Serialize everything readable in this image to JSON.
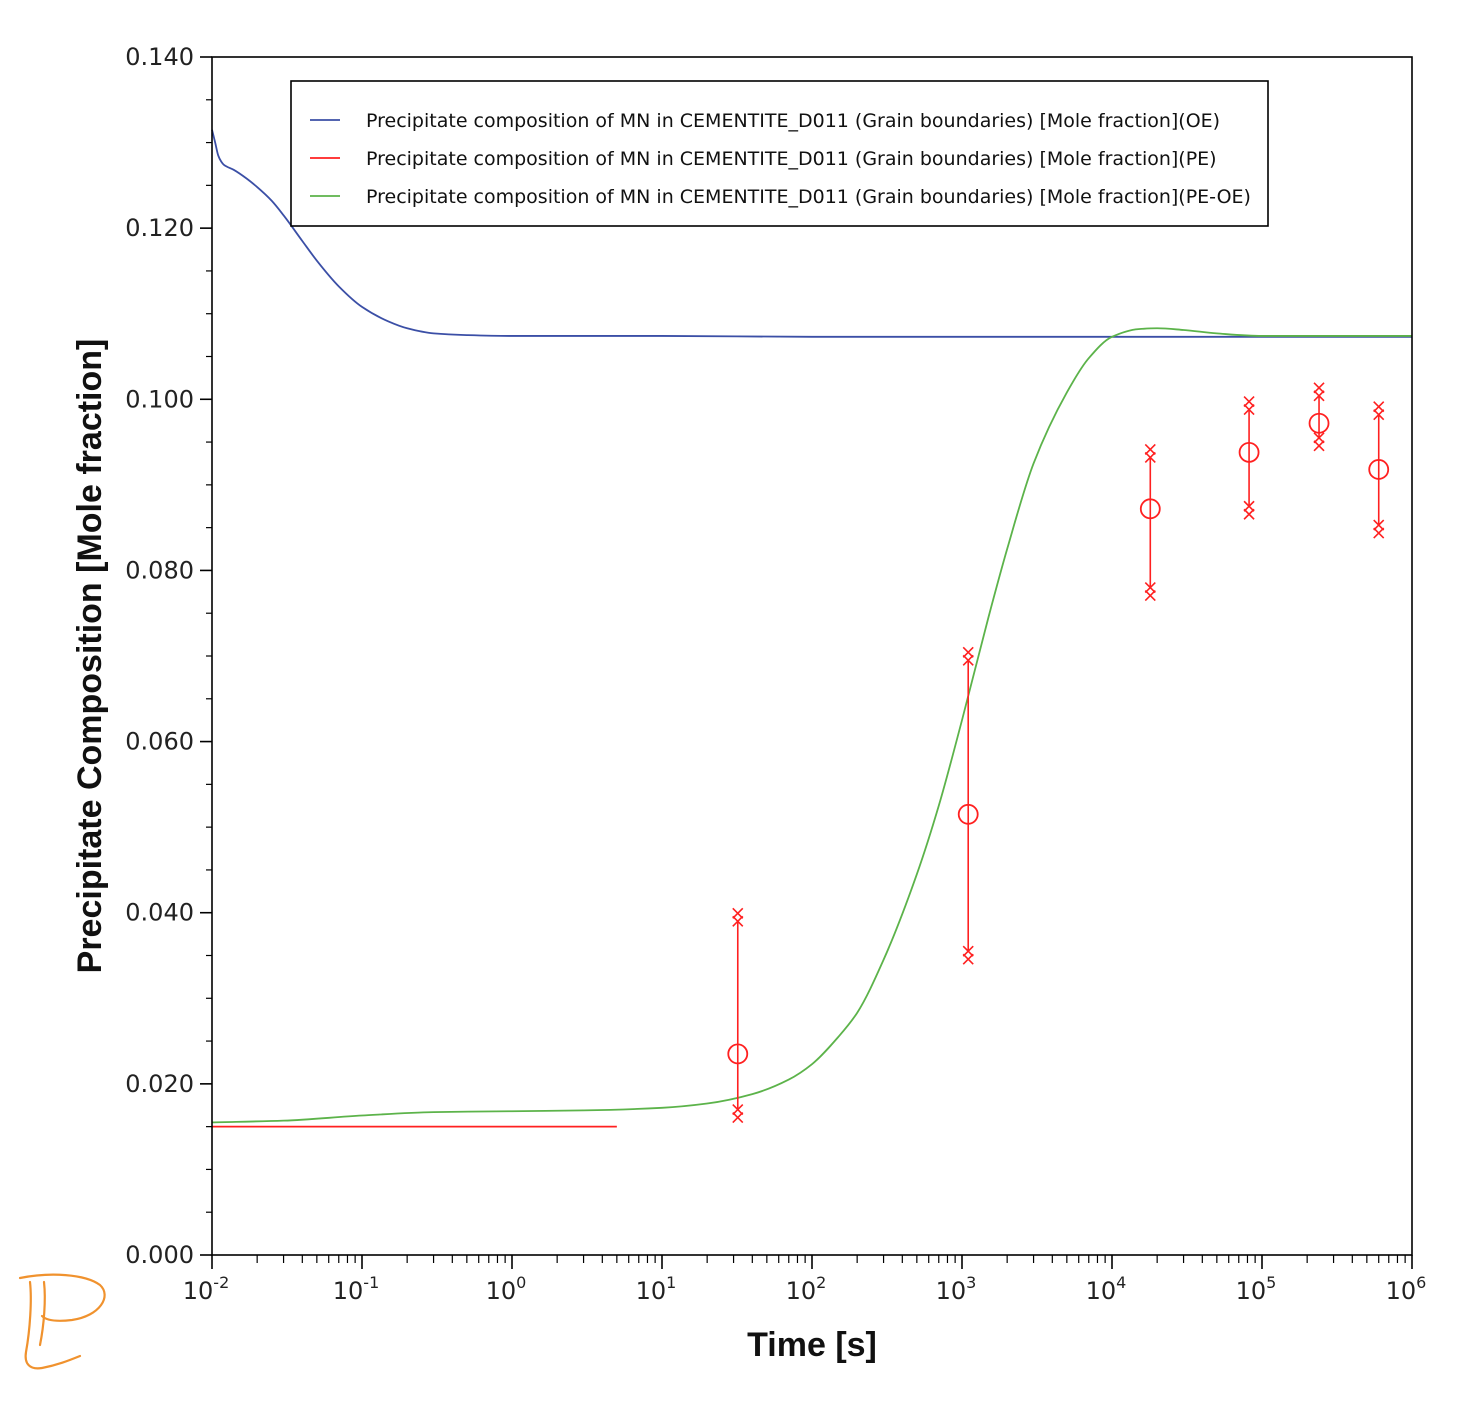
{
  "chart_data": {
    "type": "line",
    "xlabel": "Time [s]",
    "ylabel": "Precipitate Composition [Mole fraction]",
    "x_scale": "log",
    "xlim": [
      0.01,
      1000000
    ],
    "ylim": [
      0.0,
      0.14
    ],
    "grid": false,
    "legend_placement": "top-center",
    "x_tick_labels": [
      {
        "base": "10",
        "exp": "-2",
        "value": 0.01
      },
      {
        "base": "10",
        "exp": "-1",
        "value": 0.1
      },
      {
        "base": "10",
        "exp": "0",
        "value": 1
      },
      {
        "base": "10",
        "exp": "1",
        "value": 10
      },
      {
        "base": "10",
        "exp": "2",
        "value": 100
      },
      {
        "base": "10",
        "exp": "3",
        "value": 1000
      },
      {
        "base": "10",
        "exp": "4",
        "value": 10000
      },
      {
        "base": "10",
        "exp": "5",
        "value": 100000
      },
      {
        "base": "10",
        "exp": "6",
        "value": 1000000
      }
    ],
    "y_tick_labels": [
      {
        "label": "0.000",
        "value": 0.0
      },
      {
        "label": "0.020",
        "value": 0.02
      },
      {
        "label": "0.040",
        "value": 0.04
      },
      {
        "label": "0.060",
        "value": 0.06
      },
      {
        "label": "0.080",
        "value": 0.08
      },
      {
        "label": "0.100",
        "value": 0.1
      },
      {
        "label": "0.120",
        "value": 0.12
      },
      {
        "label": "0.140",
        "value": 0.14
      }
    ],
    "series": [
      {
        "name": "Precipitate composition of MN in CEMENTITE_D011 (Grain boundaries) [Mole fraction](OE)",
        "color": "#3b4fa6",
        "x": [
          0.01,
          0.0105,
          0.011,
          0.0115,
          0.012,
          0.014,
          0.017,
          0.02,
          0.025,
          0.03,
          0.04,
          0.05,
          0.07,
          0.1,
          0.15,
          0.2,
          0.3,
          0.5,
          1,
          10,
          100,
          1000,
          10000,
          100000,
          1000000
        ],
        "y": [
          0.1315,
          0.13,
          0.1285,
          0.1278,
          0.1274,
          0.1268,
          0.1258,
          0.1248,
          0.1232,
          0.1215,
          0.1185,
          0.1162,
          0.1132,
          0.1108,
          0.1091,
          0.1083,
          0.1077,
          0.1075,
          0.1074,
          0.1074,
          0.1073,
          0.1073,
          0.1073,
          0.1073,
          0.1073
        ]
      },
      {
        "name": "Precipitate composition of MN in CEMENTITE_D011 (Grain boundaries) [Mole fraction](PE)",
        "color": "#ff2020",
        "x": [
          0.01,
          5
        ],
        "y": [
          0.015,
          0.015
        ],
        "points": [
          {
            "x": 32,
            "y": 0.0235,
            "ymin": 0.017,
            "ymax": 0.039
          },
          {
            "x": 1100,
            "y": 0.0515,
            "ymin": 0.0355,
            "ymax": 0.0695
          },
          {
            "x": 18000,
            "y": 0.0872,
            "ymin": 0.078,
            "ymax": 0.0932
          },
          {
            "x": 82000,
            "y": 0.0938,
            "ymin": 0.0875,
            "ymax": 0.0988
          },
          {
            "x": 240000,
            "y": 0.0972,
            "ymin": 0.0955,
            "ymax": 0.1004
          },
          {
            "x": 600000,
            "y": 0.0918,
            "ymin": 0.0853,
            "ymax": 0.0982
          }
        ]
      },
      {
        "name": "Precipitate composition of MN in CEMENTITE_D011 (Grain boundaries) [Mole fraction](PE-OE)",
        "color": "#5cb34a",
        "x": [
          0.01,
          0.03,
          0.1,
          0.3,
          1,
          3,
          10,
          20,
          40,
          70,
          100,
          150,
          200,
          300,
          500,
          700,
          1000,
          1500,
          2000,
          3000,
          5000,
          7000,
          10000,
          15000,
          20000,
          30000,
          50000,
          100000,
          1000000
        ],
        "y": [
          0.0155,
          0.0157,
          0.0163,
          0.0167,
          0.0168,
          0.0169,
          0.0172,
          0.0177,
          0.0188,
          0.0205,
          0.0223,
          0.0255,
          0.0283,
          0.0345,
          0.0445,
          0.0525,
          0.0625,
          0.0745,
          0.0825,
          0.0925,
          0.1008,
          0.1048,
          0.1073,
          0.1082,
          0.1083,
          0.1081,
          0.1077,
          0.1074,
          0.1074
        ]
      }
    ]
  }
}
